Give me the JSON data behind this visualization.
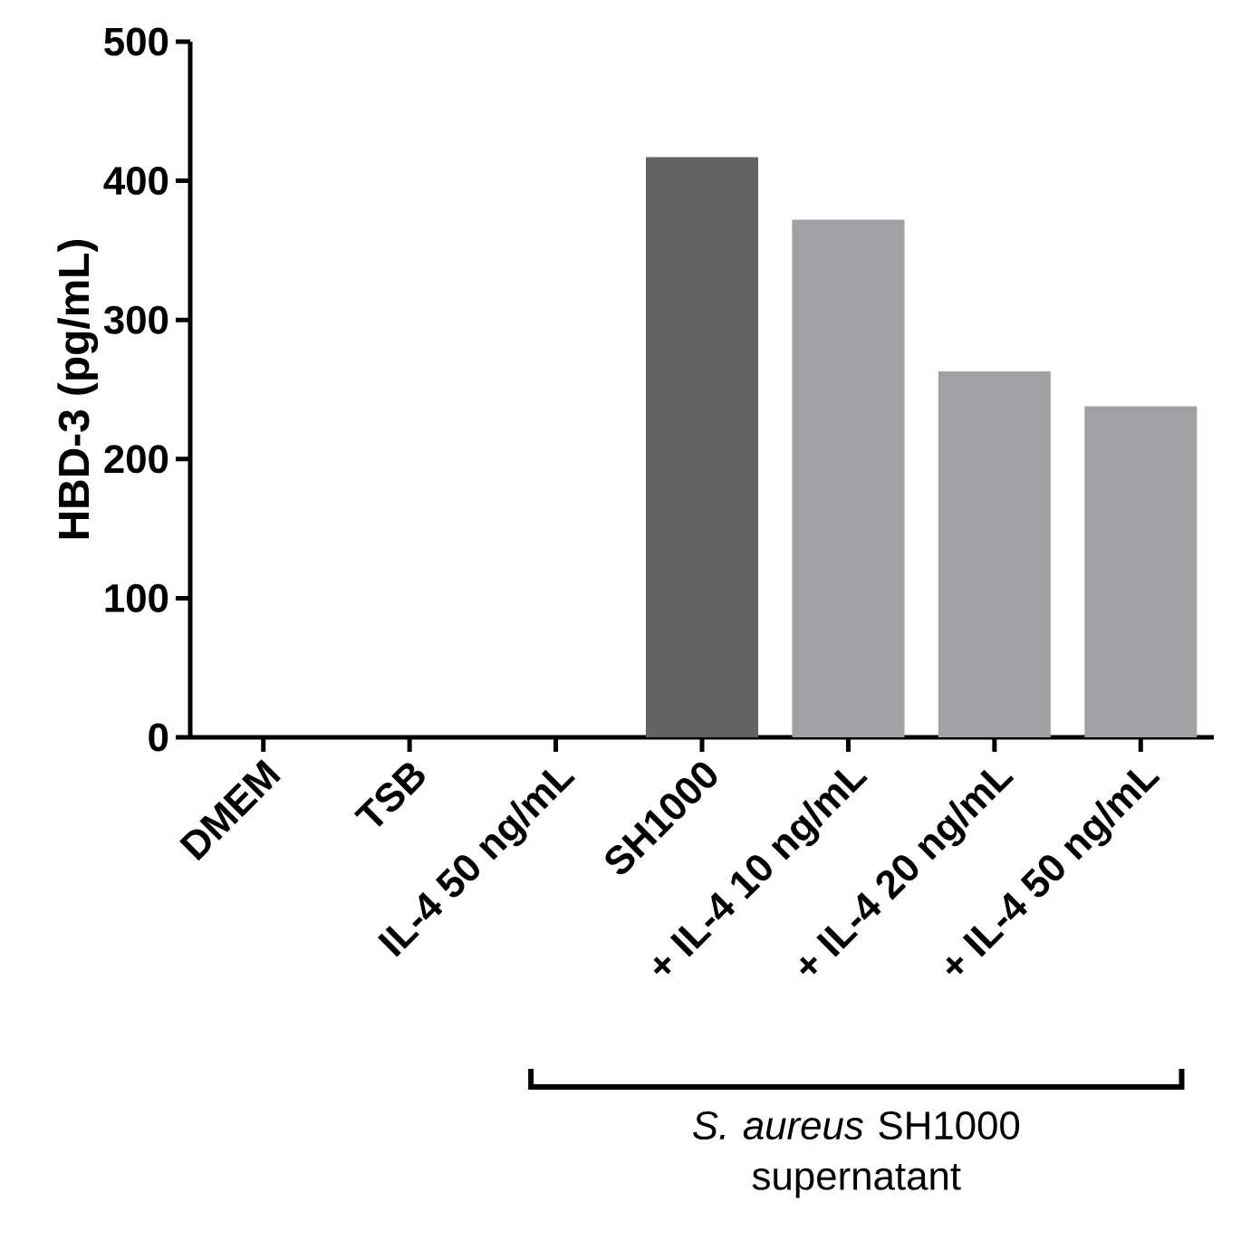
{
  "chart_data": {
    "type": "bar",
    "ylabel": "HBD-3 (pg/mL)",
    "categories": [
      "DMEM",
      "TSB",
      "IL-4 50 ng/mL",
      "SH1000",
      "+ IL-4 10 ng/mL",
      "+ IL-4 20 ng/mL",
      "+ IL-4 50 ng/mL"
    ],
    "values": [
      0,
      0,
      0,
      417,
      372,
      263,
      238
    ],
    "colors": [
      "#636363",
      "#636363",
      "#636363",
      "#636363",
      "#a1a1a5",
      "#a1a1a5",
      "#a1a1a5"
    ],
    "ylim": [
      0,
      500
    ],
    "yticks": [
      0,
      100,
      200,
      300,
      400,
      500
    ],
    "annotations": [
      "*S. aureus* SH1000 supernatant"
    ]
  }
}
